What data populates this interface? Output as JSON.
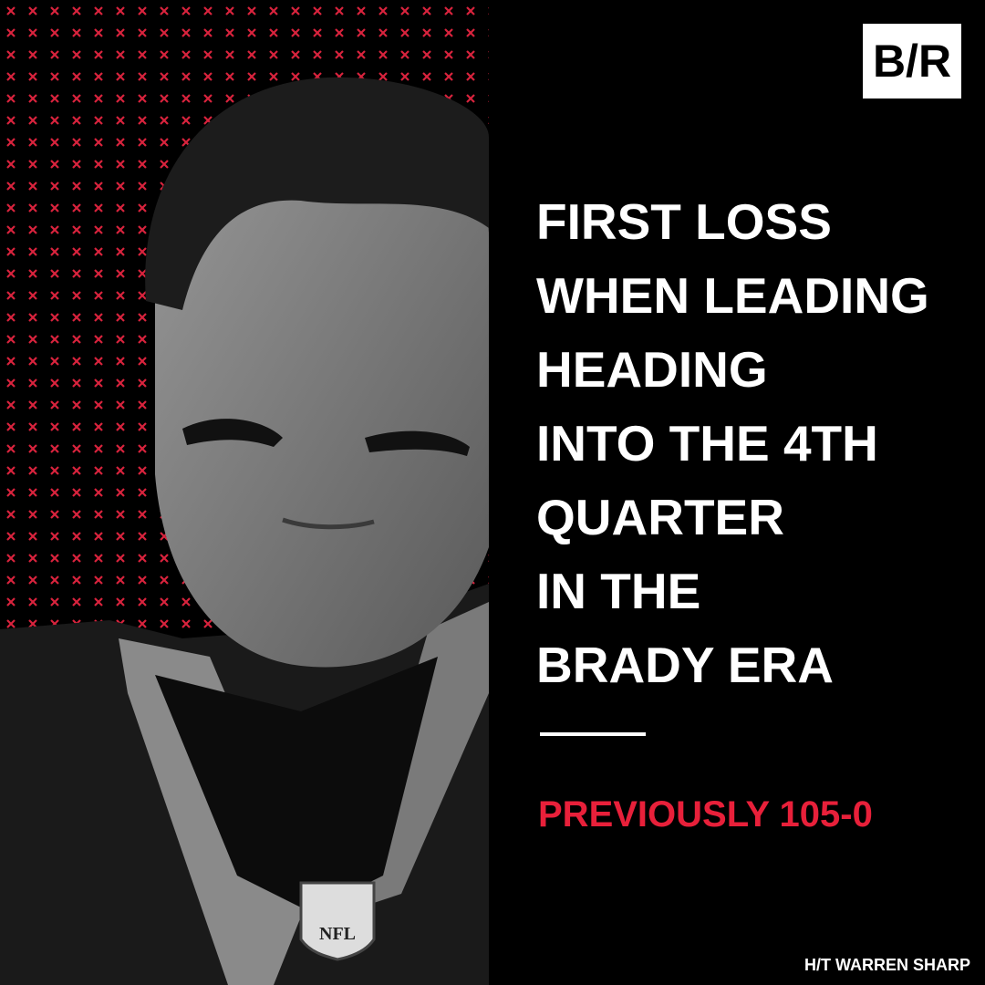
{
  "logo": {
    "text": "B/R"
  },
  "headline": {
    "lines": [
      "FIRST LOSS",
      "WHEN LEADING",
      "HEADING",
      "INTO THE 4TH",
      "QUARTER",
      "IN THE",
      "BRADY ERA"
    ]
  },
  "highlight": "PREVIOUSLY 105-0",
  "credit": "H/T WARREN SHARP",
  "photo": {
    "badge": "NFL"
  }
}
